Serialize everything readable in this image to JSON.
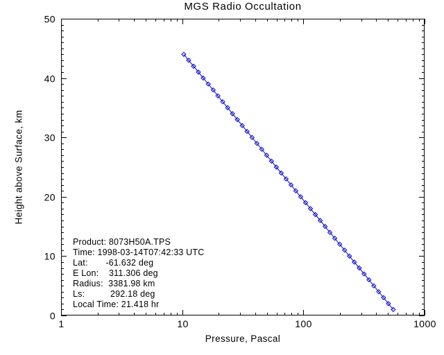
{
  "chart_data": {
    "type": "scatter",
    "title": "MGS Radio Occultation",
    "xlabel": "Pressure, Pascal",
    "ylabel": "Height above Surface, km",
    "x_scale": "log",
    "xlim": [
      1,
      1000
    ],
    "ylim": [
      0,
      50
    ],
    "x_ticks": [
      1,
      10,
      100,
      1000
    ],
    "x_tick_labels": [
      "1",
      "10",
      "100",
      "1000"
    ],
    "y_ticks": [
      0,
      10,
      20,
      30,
      40,
      50
    ],
    "y_minor_step": 1,
    "grid": false,
    "legend": "none",
    "marker": "open-diamond",
    "colors": {
      "data": "#0000cd",
      "frame": "#000000",
      "text": "#000000",
      "background": "#ffffff"
    },
    "series": [
      {
        "name": "pressure-profile",
        "height_km": [
          44,
          43,
          42,
          41,
          40,
          39,
          38,
          37,
          36,
          35,
          34,
          33,
          32,
          31,
          30,
          29,
          28,
          27,
          26,
          25,
          24,
          23,
          22,
          21,
          20,
          19,
          18,
          17,
          16,
          15,
          14,
          13,
          12,
          11,
          10,
          9,
          8,
          7,
          6,
          5,
          4,
          3,
          2,
          1
        ],
        "pressure_pa": [
          10.3,
          11.3,
          12.4,
          13.6,
          14.9,
          16.4,
          18.0,
          19.7,
          21.6,
          23.7,
          26.0,
          28.5,
          31.3,
          34.3,
          37.7,
          41.3,
          45.3,
          49.7,
          54.5,
          59.8,
          65.6,
          72.0,
          79.0,
          86.6,
          95.0,
          104.3,
          114.4,
          125.5,
          137.7,
          151.0,
          165.7,
          181.7,
          199.4,
          218.7,
          239.9,
          263.2,
          288.7,
          316.8,
          347.5,
          381.2,
          418.2,
          458.7,
          503.2,
          552.0
        ]
      }
    ]
  },
  "annotation": {
    "lines": [
      "Product: 8073H50A.TPS",
      "Time: 1998-03-14T07:42:33 UTC",
      "Lat:       -61.632 deg",
      "E Lon:    311.306 deg",
      "Radius:  3381.98 km",
      "Ls:          292.18 deg",
      "Local Time: 21.418 hr"
    ]
  }
}
